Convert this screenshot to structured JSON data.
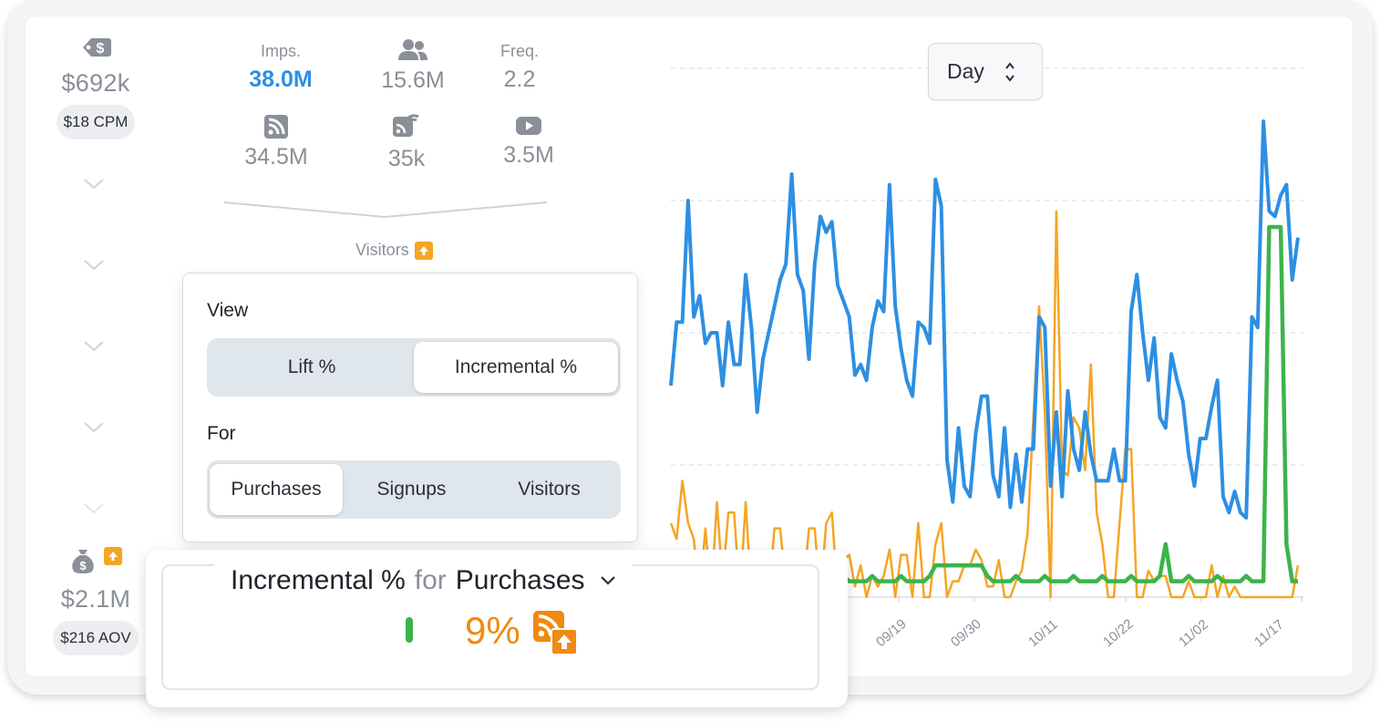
{
  "spend": {
    "total": "$692k",
    "cpm": "$18 CPM"
  },
  "revenue": {
    "total": "$2.1M",
    "aov": "$216 AOV"
  },
  "metrics": [
    {
      "label": "Imps.",
      "value": "38.0M",
      "icon": "",
      "highlight": true
    },
    {
      "label": "",
      "value": "15.6M",
      "icon": "users-icon"
    },
    {
      "label": "Freq.",
      "value": "2.2",
      "icon": ""
    },
    {
      "label": "",
      "value": "34.5M",
      "icon": "rss-icon"
    },
    {
      "label": "",
      "value": "35k",
      "icon": "rss-wifi-icon"
    },
    {
      "label": "",
      "value": "3.5M",
      "icon": "video-play-icon"
    }
  ],
  "visitors_label": "Visitors",
  "granularity": {
    "selected": "Day"
  },
  "popover": {
    "view_heading": "View",
    "view_options": [
      "Lift %",
      "Incremental %"
    ],
    "view_selected": "Incremental %",
    "for_heading": "For",
    "for_options": [
      "Purchases",
      "Signups",
      "Visitors"
    ],
    "for_selected": "Purchases"
  },
  "result": {
    "metric": "Incremental %",
    "connector": "for",
    "target": "Purchases",
    "value": "9%"
  },
  "colors": {
    "blue": "#2d8fe3",
    "orange": "#f5a524",
    "green": "#3bb44a",
    "result_orange": "#ef8a12"
  },
  "chart_data": {
    "type": "line",
    "x_tick_labels": [
      "09/19",
      "09/30",
      "10/11",
      "10/22",
      "11/02",
      "11/17"
    ],
    "grid": "horizontal dashed",
    "series": [
      {
        "color": "#2d8fe3",
        "values": [
          40,
          52,
          52,
          75,
          53,
          57,
          48,
          50,
          50,
          40,
          52,
          44,
          44,
          61,
          51,
          35,
          45,
          50,
          55,
          60,
          63,
          80,
          61,
          58,
          45,
          63,
          72,
          69,
          71,
          59,
          56,
          53,
          42,
          44,
          41,
          51,
          56,
          54,
          78,
          55,
          47,
          41,
          38,
          52,
          51,
          48,
          79,
          74,
          26,
          18,
          32,
          21,
          19,
          31,
          38,
          38,
          23,
          19,
          32,
          17,
          27,
          18,
          28,
          28,
          53,
          51,
          21,
          35,
          19,
          39,
          28,
          24,
          35,
          27,
          22,
          22,
          22,
          28,
          22,
          22,
          54,
          61,
          50,
          41,
          49,
          34,
          32,
          46,
          41,
          37,
          27,
          21,
          30,
          30,
          36,
          41,
          19,
          16,
          20,
          16,
          15,
          53,
          51,
          90,
          73,
          72,
          76,
          78,
          60,
          68
        ]
      },
      {
        "color": "#f5a524",
        "values": []
      },
      {
        "color": "#3bb44a",
        "values": []
      }
    ]
  }
}
